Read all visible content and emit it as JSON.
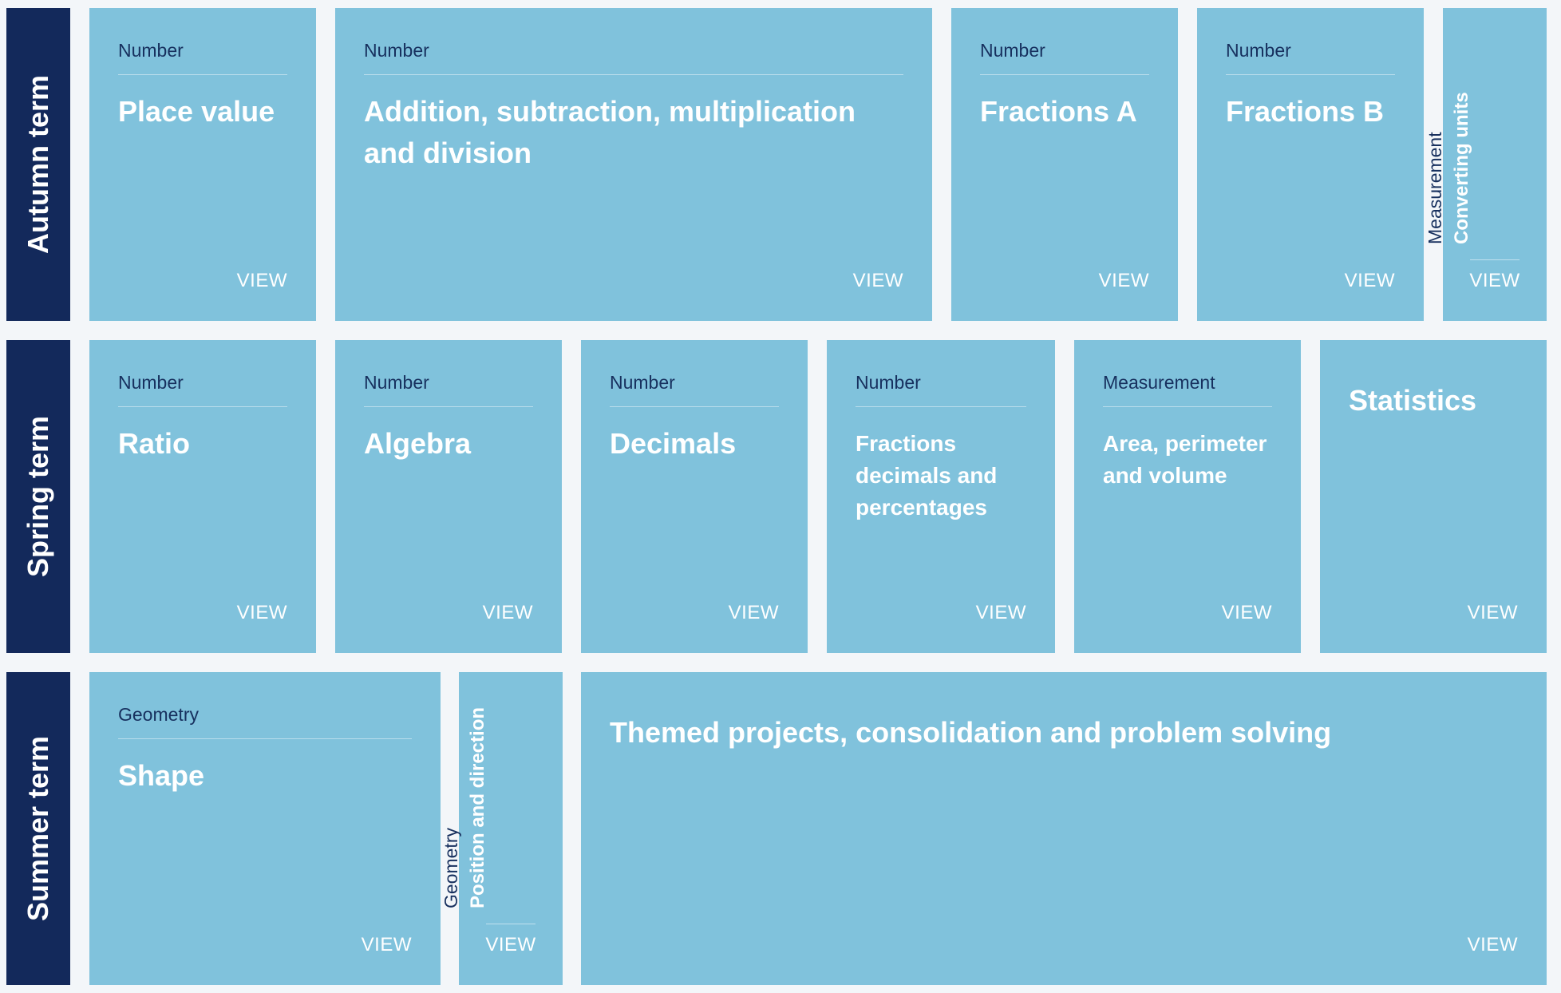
{
  "terms": [
    {
      "label": "Autumn term"
    },
    {
      "label": "Spring term"
    },
    {
      "label": "Summer term"
    }
  ],
  "view_label": "VIEW",
  "autumn": [
    {
      "category": "Number",
      "title": "Place value"
    },
    {
      "category": "Number",
      "title": "Addition, subtraction, multiplication and division"
    },
    {
      "category": "Number",
      "title": "Fractions A"
    },
    {
      "category": "Number",
      "title": "Fractions B"
    },
    {
      "category": "Measurement",
      "title": "Converting units"
    }
  ],
  "spring": [
    {
      "category": "Number",
      "title": "Ratio"
    },
    {
      "category": "Number",
      "title": "Algebra"
    },
    {
      "category": "Number",
      "title": "Decimals"
    },
    {
      "category": "Number",
      "title": "Fractions decimals and percentages"
    },
    {
      "category": "Measurement",
      "title": "Area, perimeter and volume"
    },
    {
      "title": "Statistics"
    }
  ],
  "summer": [
    {
      "category": "Geometry",
      "title": "Shape"
    },
    {
      "category": "Geometry",
      "title": "Position and direction"
    },
    {
      "title": "Themed projects, consolidation and problem solving"
    }
  ],
  "colors": {
    "term_bg": "#13295b",
    "card_bg": "#80c2dc",
    "category_text": "#17305e",
    "page_bg": "#f3f6f9"
  }
}
